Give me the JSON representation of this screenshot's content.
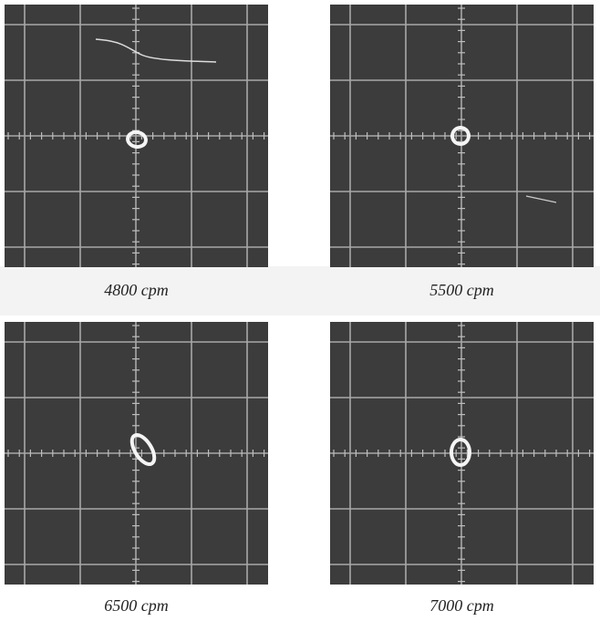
{
  "panels": [
    {
      "caption": "4800 cpm"
    },
    {
      "caption": "5500 cpm"
    },
    {
      "caption": "6500 cpm"
    },
    {
      "caption": "7000 cpm"
    }
  ]
}
